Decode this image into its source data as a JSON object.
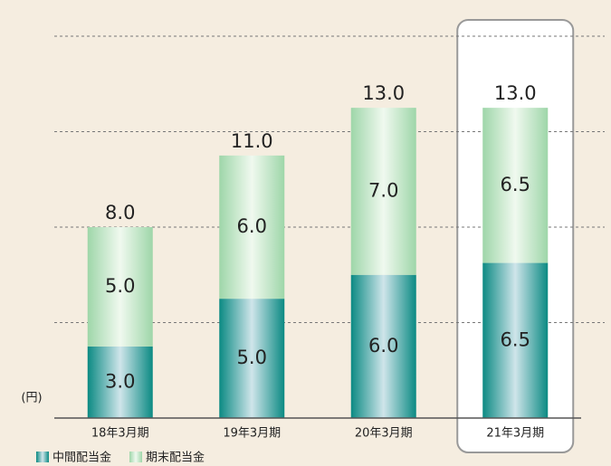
{
  "chart_data": {
    "type": "stacked_bar",
    "categories": [
      "18年3月期",
      "19年3月期",
      "20年3月期",
      "21年3月期"
    ],
    "series": [
      {
        "name": "中間配当金",
        "color": "#15918b",
        "values": [
          3,
          5,
          6,
          6.5
        ],
        "value_labels": [
          "3.0",
          "5.0",
          "6.0",
          "6.5"
        ]
      },
      {
        "name": "期末配当金",
        "color": "#a3d9ac",
        "values": [
          5,
          6,
          7,
          6.5
        ],
        "value_labels": [
          "5.0",
          "6.0",
          "7.0",
          "6.5"
        ]
      }
    ],
    "totals": {
      "values": [
        8,
        11,
        13,
        13
      ],
      "value_labels": [
        "8.0",
        "11.0",
        "13.0",
        "13.0"
      ]
    },
    "y_label": "(円)",
    "ylim": [
      0,
      16
    ],
    "yticks": [
      0,
      4,
      8,
      12,
      16
    ],
    "grid": true,
    "highlight_index": 3,
    "legend": "bottom-left"
  }
}
